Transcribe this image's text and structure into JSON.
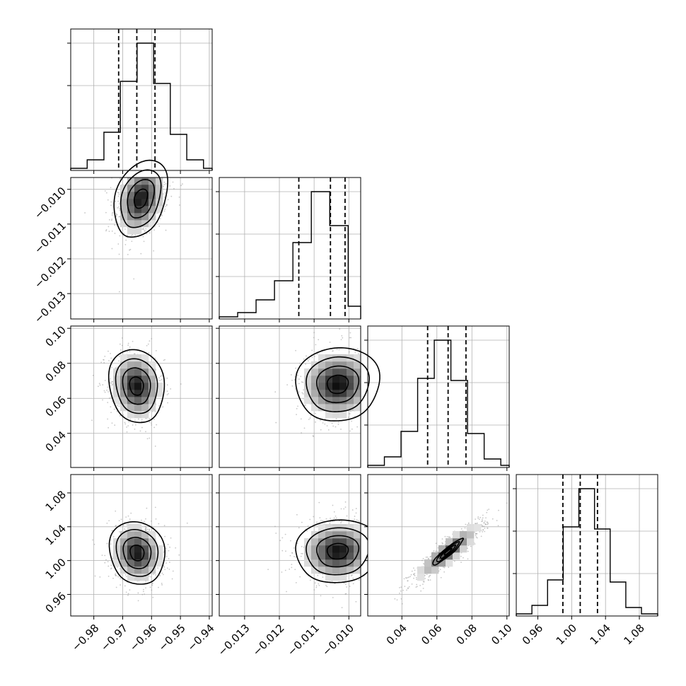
{
  "chart_data": {
    "type": "corner",
    "grid": true,
    "title": "",
    "parameters": [
      {
        "index": 0,
        "range": [
          -0.988,
          -0.939
        ],
        "ticks": [
          -0.98,
          -0.97,
          -0.96,
          -0.95,
          -0.94
        ],
        "tick_labels": [
          "−0.98",
          "−0.97",
          "−0.96",
          "−0.95",
          "−0.94"
        ],
        "quantiles": [
          -0.9714,
          -0.9651,
          -0.9588
        ],
        "mean": -0.9651,
        "sd": 0.0048
      },
      {
        "index": 1,
        "range": [
          -0.01373,
          -0.00966
        ],
        "ticks": [
          -0.013,
          -0.012,
          -0.011,
          -0.01
        ],
        "tick_labels": [
          "−0.013",
          "−0.012",
          "−0.011",
          "−0.010"
        ],
        "quantiles": [
          -0.01144,
          -0.01053,
          -0.01011
        ],
        "mean": -0.0106,
        "sd": 0.0006
      },
      {
        "index": 2,
        "range": [
          0.0205,
          0.1013
        ],
        "ticks": [
          0.04,
          0.06,
          0.08,
          0.1
        ],
        "tick_labels": [
          "0.04",
          "0.06",
          "0.08",
          "0.10"
        ],
        "quantiles": [
          0.0547,
          0.0664,
          0.0766
        ],
        "mean": 0.0665,
        "sd": 0.011
      },
      {
        "index": 3,
        "range": [
          0.9345,
          1.1017
        ],
        "ticks": [
          0.96,
          1.0,
          1.04,
          1.08
        ],
        "tick_labels": [
          "0.96",
          "1.00",
          "1.04",
          "1.08"
        ],
        "quantiles": [
          0.9896,
          1.0101,
          1.0305
        ],
        "mean": 1.0101,
        "sd": 0.0195
      }
    ],
    "histograms": [
      {
        "param": 0,
        "edges": [
          -0.988,
          -0.9823,
          -0.9765,
          -0.9708,
          -0.965,
          -0.9593,
          -0.9535,
          -0.9478,
          -0.942,
          -0.939
        ],
        "counts": [
          1,
          5,
          18,
          42,
          60,
          41,
          17,
          5,
          1
        ]
      },
      {
        "param": 1,
        "edges": [
          -0.01373,
          -0.0132,
          -0.01267,
          -0.01214,
          -0.01161,
          -0.01108,
          -0.01055,
          -0.01002,
          -0.00966
        ],
        "counts": [
          1,
          3,
          9,
          18,
          36,
          60,
          44,
          6
        ]
      },
      {
        "param": 2,
        "edges": [
          0.0205,
          0.03,
          0.0395,
          0.049,
          0.0585,
          0.068,
          0.0775,
          0.087,
          0.0965,
          0.1013
        ],
        "counts": [
          1,
          5,
          17,
          42,
          60,
          41,
          16,
          4,
          1
        ]
      },
      {
        "param": 3,
        "edges": [
          0.9345,
          0.953,
          0.9715,
          0.99,
          1.0085,
          1.027,
          1.0455,
          1.064,
          1.0825,
          1.1017
        ],
        "counts": [
          1,
          5,
          17,
          42,
          60,
          41,
          16,
          4,
          1
        ]
      }
    ],
    "pairs": [
      {
        "x_param": 0,
        "y_param": 1,
        "peak": [
          -0.9637,
          -0.01027
        ],
        "spread": [
          0.0048,
          0.0006
        ],
        "correlation": 0.28
      },
      {
        "x_param": 0,
        "y_param": 2,
        "peak": [
          -0.9652,
          0.067
        ],
        "spread": [
          0.0048,
          0.011
        ],
        "correlation": -0.1
      },
      {
        "x_param": 1,
        "y_param": 2,
        "peak": [
          -0.01032,
          0.068
        ],
        "spread": [
          0.0006,
          0.011
        ],
        "correlation": 0.05
      },
      {
        "x_param": 0,
        "y_param": 3,
        "peak": [
          -0.965,
          1.009
        ],
        "spread": [
          0.0048,
          0.0195
        ],
        "correlation": -0.1
      },
      {
        "x_param": 1,
        "y_param": 3,
        "peak": [
          -0.01032,
          1.011
        ],
        "spread": [
          0.0006,
          0.0195
        ],
        "correlation": 0.05
      },
      {
        "x_param": 2,
        "y_param": 3,
        "peak": [
          0.0664,
          1.0105
        ],
        "spread": [
          0.011,
          0.0195
        ],
        "correlation": 0.92
      }
    ],
    "colors": {
      "points": "#9a9a9a",
      "lines": "#000000",
      "grid": "#b0b0b0"
    }
  }
}
